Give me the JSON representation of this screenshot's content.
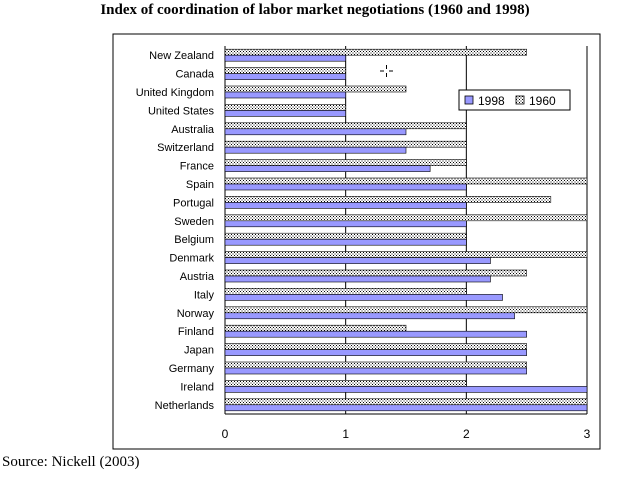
{
  "chart_data": {
    "type": "bar",
    "orientation": "horizontal",
    "title": "Index of coordination of labor market negotiations (1960 and 1998)",
    "source": "Source: Nickell (2003)",
    "categories": [
      "New Zealand",
      "Canada",
      "United Kingdom",
      "United States",
      "Australia",
      "Switzerland",
      "France",
      "Spain",
      "Portugal",
      "Sweden",
      "Belgium",
      "Denmark",
      "Austria",
      "Italy",
      "Norway",
      "Finland",
      "Japan",
      "Germany",
      "Ireland",
      "Netherlands"
    ],
    "series": [
      {
        "name": "1998",
        "color": "#9999ff",
        "values": [
          1,
          1,
          1,
          1,
          1.5,
          1.5,
          1.7,
          2,
          2,
          2,
          2,
          2.2,
          2.2,
          2.3,
          2.4,
          2.5,
          2.5,
          2.5,
          3,
          3
        ]
      },
      {
        "name": "1960",
        "color": "#ffffff",
        "pattern": "dotted",
        "values": [
          2.5,
          1,
          1.5,
          1,
          2,
          2,
          2,
          3,
          2.7,
          3,
          2,
          3,
          2.5,
          2,
          3,
          1.5,
          2.5,
          2.5,
          2,
          3
        ]
      }
    ],
    "xlim": [
      0,
      3
    ],
    "xticks": [
      "0",
      "1",
      "2",
      "3"
    ],
    "grid": "vertical",
    "legend_position": "upper-right inside plot"
  }
}
